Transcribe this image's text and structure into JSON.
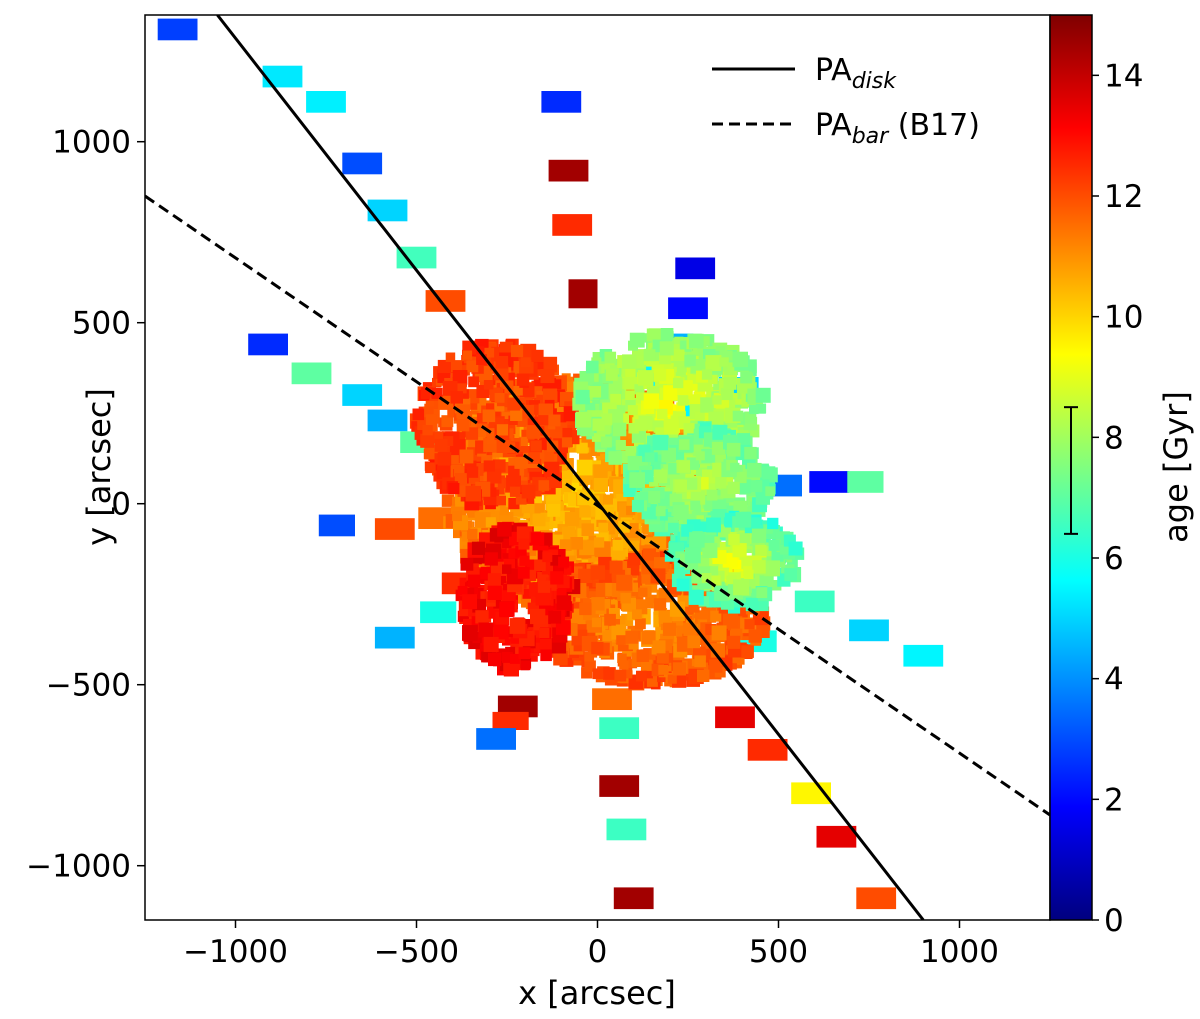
{
  "chart_data": {
    "type": "scatter",
    "xlabel": "x [arcsec]",
    "ylabel": "y [arcsec]",
    "xlim": [
      -1250,
      1250
    ],
    "ylim": [
      -1150,
      1350
    ],
    "xticks": [
      -1000,
      -500,
      0,
      500,
      1000
    ],
    "yticks": [
      -1000,
      -500,
      0,
      500,
      1000
    ],
    "tick_labels": {
      "x": [
        "−1000",
        "−500",
        "0",
        "500",
        "1000"
      ],
      "y": [
        "−1000",
        "−500",
        "0",
        "500",
        "1000"
      ]
    },
    "colorbar": {
      "label": "age [Gyr]",
      "range": [
        0,
        15
      ],
      "ticks": [
        0,
        2,
        4,
        6,
        8,
        10,
        12,
        14
      ],
      "colormap": "jet",
      "errorbar": {
        "center": 7.45,
        "low": 6.4,
        "high": 8.5
      }
    },
    "lines": [
      {
        "name": "PA_disk",
        "style": "solid",
        "color": "#000000",
        "points": [
          [
            -1050,
            1350
          ],
          [
            900,
            -1150
          ]
        ]
      },
      {
        "name": "PA_bar (B17)",
        "style": "dashed",
        "color": "#000000",
        "points": [
          [
            -1250,
            850
          ],
          [
            1250,
            -860
          ]
        ]
      }
    ],
    "legend": {
      "position": "top-right",
      "entries": [
        {
          "main": "PA",
          "sub": "disk",
          "suffix": ""
        },
        {
          "main": "PA",
          "sub": "bar",
          "suffix": " (B17)"
        }
      ]
    },
    "tiles": [
      {
        "x": -1160,
        "y": 1310,
        "w": 110,
        "h": 60,
        "age": 2.8
      },
      {
        "x": -870,
        "y": 1180,
        "w": 110,
        "h": 60,
        "age": 5.3
      },
      {
        "x": -750,
        "y": 1110,
        "w": 110,
        "h": 60,
        "age": 5.4
      },
      {
        "x": -650,
        "y": 940,
        "w": 110,
        "h": 60,
        "age": 3.0
      },
      {
        "x": -580,
        "y": 810,
        "w": 110,
        "h": 60,
        "age": 5.0
      },
      {
        "x": -500,
        "y": 680,
        "w": 110,
        "h": 60,
        "age": 6.6
      },
      {
        "x": -420,
        "y": 560,
        "w": 110,
        "h": 60,
        "age": 12.0
      },
      {
        "x": -910,
        "y": 440,
        "w": 110,
        "h": 60,
        "age": 2.5
      },
      {
        "x": -790,
        "y": 360,
        "w": 110,
        "h": 60,
        "age": 7.0
      },
      {
        "x": -650,
        "y": 300,
        "w": 110,
        "h": 60,
        "age": 5.0
      },
      {
        "x": -580,
        "y": 230,
        "w": 110,
        "h": 60,
        "age": 4.5
      },
      {
        "x": -490,
        "y": 170,
        "w": 110,
        "h": 60,
        "age": 7.0
      },
      {
        "x": -720,
        "y": -60,
        "w": 100,
        "h": 60,
        "age": 3.0
      },
      {
        "x": -560,
        "y": -70,
        "w": 110,
        "h": 60,
        "age": 12.0
      },
      {
        "x": -440,
        "y": -40,
        "w": 110,
        "h": 60,
        "age": 11.5
      },
      {
        "x": -300,
        "y": -110,
        "w": 110,
        "h": 60,
        "age": 13.5
      },
      {
        "x": -380,
        "y": -220,
        "w": 100,
        "h": 60,
        "age": 12.5
      },
      {
        "x": -440,
        "y": -300,
        "w": 100,
        "h": 60,
        "age": 6.0
      },
      {
        "x": -560,
        "y": -370,
        "w": 110,
        "h": 60,
        "age": 4.5
      },
      {
        "x": -220,
        "y": -560,
        "w": 110,
        "h": 60,
        "age": 14.5
      },
      {
        "x": -240,
        "y": -600,
        "w": 100,
        "h": 50,
        "age": 12.5
      },
      {
        "x": -280,
        "y": -650,
        "w": 110,
        "h": 60,
        "age": 3.5
      },
      {
        "x": -100,
        "y": 1110,
        "w": 110,
        "h": 60,
        "age": 2.5
      },
      {
        "x": -80,
        "y": 920,
        "w": 110,
        "h": 60,
        "age": 14.5
      },
      {
        "x": -70,
        "y": 770,
        "w": 110,
        "h": 60,
        "age": 12.5
      },
      {
        "x": -40,
        "y": 580,
        "w": 80,
        "h": 80,
        "age": 14.5
      },
      {
        "x": 40,
        "y": -540,
        "w": 110,
        "h": 60,
        "age": 11.5
      },
      {
        "x": 60,
        "y": -620,
        "w": 110,
        "h": 60,
        "age": 6.5
      },
      {
        "x": 60,
        "y": -780,
        "w": 110,
        "h": 60,
        "age": 14.5
      },
      {
        "x": 80,
        "y": -900,
        "w": 110,
        "h": 60,
        "age": 6.5
      },
      {
        "x": 100,
        "y": -1090,
        "w": 110,
        "h": 60,
        "age": 14.5
      },
      {
        "x": 270,
        "y": 650,
        "w": 110,
        "h": 60,
        "age": 1.5
      },
      {
        "x": 250,
        "y": 540,
        "w": 110,
        "h": 60,
        "age": 2.0
      },
      {
        "x": 210,
        "y": 440,
        "w": 110,
        "h": 60,
        "age": 4.5
      },
      {
        "x": 180,
        "y": 350,
        "w": 110,
        "h": 60,
        "age": 5.5
      },
      {
        "x": 280,
        "y": 270,
        "w": 110,
        "h": 60,
        "age": 5.5
      },
      {
        "x": 390,
        "y": 320,
        "w": 110,
        "h": 60,
        "age": 5.0
      },
      {
        "x": 510,
        "y": 50,
        "w": 110,
        "h": 60,
        "age": 3.5
      },
      {
        "x": 640,
        "y": 60,
        "w": 110,
        "h": 60,
        "age": 2.0
      },
      {
        "x": 740,
        "y": 60,
        "w": 100,
        "h": 60,
        "age": 7.0
      },
      {
        "x": 600,
        "y": -270,
        "w": 110,
        "h": 60,
        "age": 6.5
      },
      {
        "x": 750,
        "y": -350,
        "w": 110,
        "h": 60,
        "age": 5.0
      },
      {
        "x": 900,
        "y": -420,
        "w": 110,
        "h": 60,
        "age": 5.5
      },
      {
        "x": 440,
        "y": -380,
        "w": 110,
        "h": 60,
        "age": 6.0
      },
      {
        "x": 380,
        "y": -590,
        "w": 110,
        "h": 60,
        "age": 13.5
      },
      {
        "x": 470,
        "y": -680,
        "w": 110,
        "h": 60,
        "age": 12.5
      },
      {
        "x": 590,
        "y": -800,
        "w": 110,
        "h": 60,
        "age": 9.5
      },
      {
        "x": 660,
        "y": -920,
        "w": 110,
        "h": 60,
        "age": 13.5
      },
      {
        "x": 770,
        "y": -1090,
        "w": 110,
        "h": 60,
        "age": 12.0
      }
    ],
    "clusters": [
      {
        "cx": -50,
        "cy": 30,
        "rx": 380,
        "ry": 320,
        "n": 1100,
        "age_center": 10.3,
        "age_edge": 11.4
      },
      {
        "cx": -280,
        "cy": 220,
        "rx": 220,
        "ry": 230,
        "n": 420,
        "age_center": 11.8,
        "age_edge": 12.4
      },
      {
        "cx": 200,
        "cy": 280,
        "rx": 260,
        "ry": 190,
        "n": 450,
        "age_center": 9.2,
        "age_edge": 7.5
      },
      {
        "cx": 280,
        "cy": 60,
        "rx": 200,
        "ry": 150,
        "n": 300,
        "age_center": 8.5,
        "age_edge": 7.0
      },
      {
        "cx": 150,
        "cy": -320,
        "rx": 320,
        "ry": 180,
        "n": 500,
        "age_center": 11.0,
        "age_edge": 12.0
      },
      {
        "cx": -220,
        "cy": -260,
        "rx": 160,
        "ry": 200,
        "n": 280,
        "age_center": 12.8,
        "age_edge": 13.2
      },
      {
        "cx": 380,
        "cy": -160,
        "rx": 180,
        "ry": 130,
        "n": 220,
        "age_center": 9.5,
        "age_edge": 6.5
      }
    ]
  }
}
